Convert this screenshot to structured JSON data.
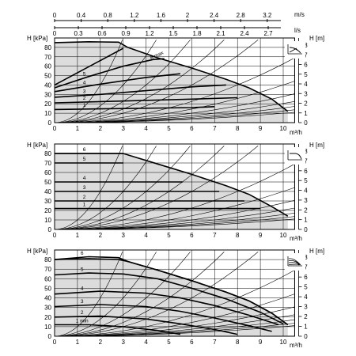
{
  "chart_data": {
    "type": "line",
    "top_axes": {
      "ms": {
        "unit": "m/s",
        "ticks": [
          "0",
          "0.4",
          "0.8",
          "1.2",
          "1.6",
          "2",
          "2.4",
          "2.8",
          "3.2"
        ],
        "values": [
          0,
          0.4,
          0.8,
          1.2,
          1.6,
          2,
          2.4,
          2.8,
          3.2
        ]
      },
      "ls": {
        "unit": "l/s",
        "ticks": [
          "0",
          "0.3",
          "0.6",
          "0.9",
          "1.2",
          "1.5",
          "1.8",
          "2.1",
          "2.4",
          "2.7"
        ],
        "values": [
          0,
          0.3,
          0.6,
          0.9,
          1.2,
          1.5,
          1.8,
          2.1,
          2.4,
          2.7
        ]
      }
    },
    "x_axis": {
      "label": "m³/h",
      "ticks": [
        "0",
        "1",
        "2",
        "3",
        "4",
        "5",
        "6",
        "7",
        "8",
        "9",
        "10"
      ],
      "xlim": [
        0,
        10.5
      ]
    },
    "y_left": {
      "label": "H [kPa]",
      "ticks": [
        "0",
        "10",
        "20",
        "30",
        "40",
        "50",
        "60",
        "70",
        "80"
      ],
      "ylim": [
        0,
        90
      ]
    },
    "y_right": {
      "label": "H [m]",
      "ticks": [
        "0",
        "1",
        "2",
        "3",
        "4",
        "5",
        "6",
        "7",
        "8"
      ]
    },
    "panels": [
      {
        "mode": "proportional pressure",
        "mode_icon": "proportional-pressure-icon",
        "outer": [
          [
            0,
            85
          ],
          [
            1.5,
            86
          ],
          [
            2.8,
            85.5
          ],
          [
            3.2,
            80
          ],
          [
            4.5,
            69
          ],
          [
            6,
            58
          ],
          [
            7.5,
            46
          ],
          [
            8.5,
            37
          ],
          [
            9.5,
            25
          ],
          [
            10.2,
            12
          ]
        ],
        "curves": [
          {
            "label": "6 max",
            "points": [
              [
                0,
                40
              ],
              [
                3,
                79
              ]
            ]
          },
          {
            "label": "5",
            "points": [
              [
                0,
                37
              ],
              [
                1.5,
                49
              ],
              [
                3,
                60
              ],
              [
                4.3,
                67
              ],
              [
                4.8,
                68
              ]
            ]
          },
          {
            "label": "4",
            "points": [
              [
                0,
                33
              ],
              [
                2,
                41
              ],
              [
                4,
                48
              ],
              [
                5.5,
                52
              ]
            ]
          },
          {
            "label": "3",
            "points": [
              [
                0,
                27
              ],
              [
                2,
                30
              ],
              [
                4,
                34
              ],
              [
                6,
                38
              ],
              [
                7.5,
                40
              ]
            ]
          },
          {
            "label": "2",
            "points": [
              [
                0,
                21
              ],
              [
                3,
                23
              ],
              [
                6,
                25
              ],
              [
                8,
                26.5
              ]
            ]
          },
          {
            "label": "1",
            "points": [
              [
                0,
                14
              ],
              [
                3,
                15
              ],
              [
                6,
                16
              ],
              [
                7,
                17
              ]
            ]
          }
        ]
      },
      {
        "mode": "constant pressure",
        "mode_icon": "constant-pressure-icon",
        "outer": [
          [
            0,
            80
          ],
          [
            3,
            80
          ],
          [
            4.5,
            69
          ],
          [
            6,
            58
          ],
          [
            7.5,
            46
          ],
          [
            8.5,
            37
          ],
          [
            9.5,
            24
          ],
          [
            10.2,
            14
          ]
        ],
        "curves": [
          {
            "label": "6",
            "level": 80,
            "xmax": 3
          },
          {
            "label": "5",
            "level": 70,
            "xmax": 3
          },
          {
            "label": "4",
            "level": 50,
            "xmax": 5.6
          },
          {
            "label": "3",
            "level": 40,
            "xmax": 7.2
          },
          {
            "label": "2",
            "level": 30,
            "xmax": 8.3
          },
          {
            "label": "1",
            "level": 22,
            "xmax": 9.0
          }
        ]
      },
      {
        "mode": "constant curve",
        "mode_icon": "constant-curve-icon",
        "outer": [
          [
            0,
            80
          ],
          [
            1.5,
            81
          ],
          [
            2.8,
            80
          ],
          [
            3.2,
            78
          ],
          [
            4.5,
            69
          ],
          [
            6,
            58
          ],
          [
            7.5,
            46
          ],
          [
            8.5,
            37
          ],
          [
            9.5,
            24
          ],
          [
            10.2,
            12
          ]
        ],
        "curves": [
          {
            "label": "6",
            "points": [
              [
                0,
                80
              ],
              [
                1.5,
                83
              ],
              [
                2.8,
                82
              ],
              [
                3.2,
                78
              ],
              [
                4.5,
                69
              ],
              [
                6,
                58
              ],
              [
                7.5,
                46
              ],
              [
                8.5,
                37
              ],
              [
                9.5,
                24
              ],
              [
                10.2,
                12
              ]
            ]
          },
          {
            "label": "5",
            "points": [
              [
                0,
                64
              ],
              [
                1.5,
                66
              ],
              [
                3,
                65
              ],
              [
                4.5,
                60
              ],
              [
                6,
                50
              ],
              [
                7.5,
                39
              ],
              [
                9,
                25
              ],
              [
                10,
                13
              ]
            ]
          },
          {
            "label": "4",
            "points": [
              [
                0,
                44
              ],
              [
                2,
                47
              ],
              [
                4,
                45
              ],
              [
                5.5,
                40
              ],
              [
                7,
                32
              ],
              [
                8.5,
                22
              ],
              [
                9.8,
                12
              ]
            ]
          },
          {
            "label": "3",
            "points": [
              [
                0,
                31
              ],
              [
                2,
                33
              ],
              [
                4,
                31
              ],
              [
                5.5,
                26
              ],
              [
                7,
                19
              ],
              [
                8.5,
                11
              ],
              [
                9.5,
                5
              ]
            ]
          },
          {
            "label": "2",
            "points": [
              [
                0,
                20
              ],
              [
                2,
                21
              ],
              [
                4,
                18
              ],
              [
                5.5,
                13
              ],
              [
                7,
                7
              ],
              [
                8,
                2
              ]
            ]
          },
          {
            "label": "1 min",
            "points": [
              [
                0,
                12
              ],
              [
                1.5,
                12
              ],
              [
                3,
                10
              ],
              [
                4.5,
                6
              ],
              [
                5.5,
                2
              ]
            ]
          }
        ]
      }
    ],
    "system_curve_flows_at_10kpa": [
      1,
      1.5,
      2,
      2.5,
      3,
      4,
      5,
      6,
      7,
      8,
      9,
      10
    ]
  }
}
